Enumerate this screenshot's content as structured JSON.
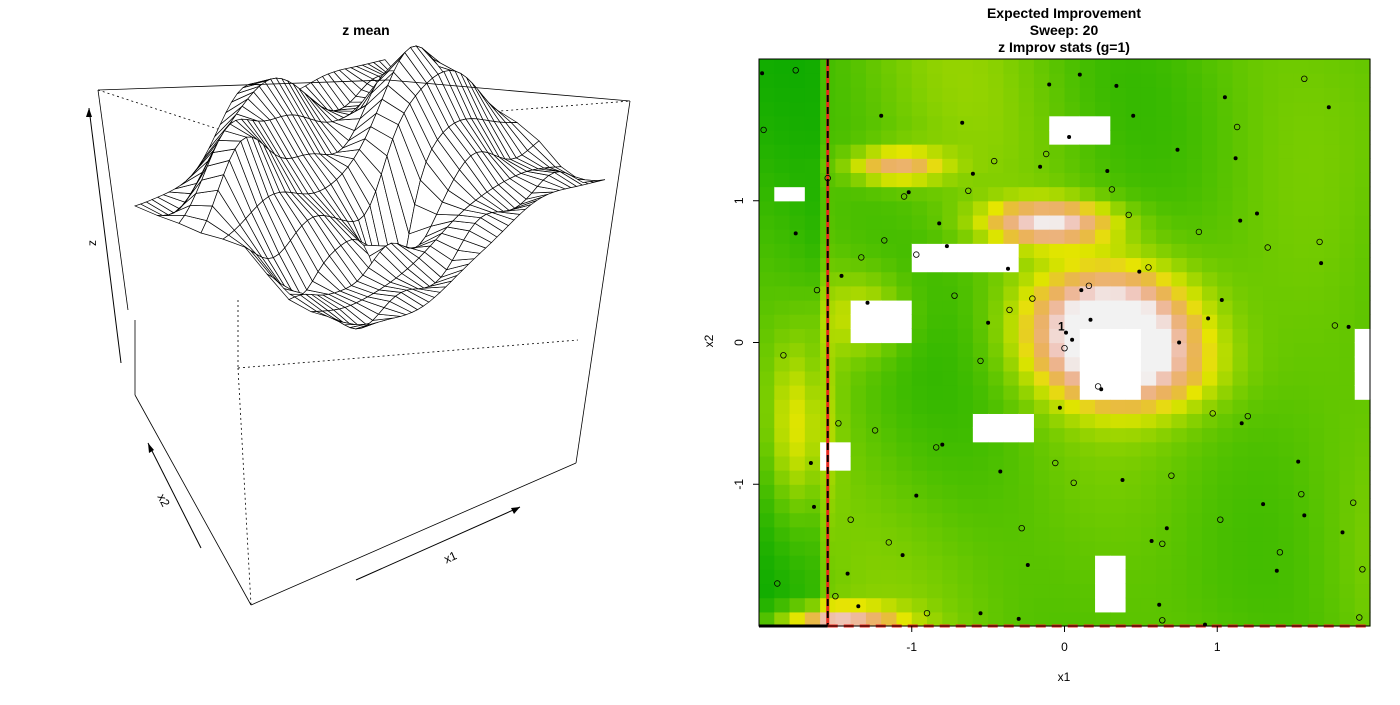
{
  "chart_data": [
    {
      "type": "surface",
      "title": "z mean",
      "xlabel": "x1",
      "ylabel": "x2",
      "zlabel": "z",
      "x_range": [
        -2,
        2
      ],
      "y_range": [
        -2,
        2
      ],
      "grid": false,
      "surface_features": [
        {
          "x": -1.2,
          "y": 1.0,
          "height": 0.9
        },
        {
          "x": -0.3,
          "y": 1.6,
          "height": 0.8
        },
        {
          "x": 1.0,
          "y": 0.3,
          "height": 0.6
        },
        {
          "x": 0.0,
          "y": -0.4,
          "height": -0.9
        },
        {
          "x": -1.5,
          "y": -0.5,
          "height": -0.3
        }
      ]
    },
    {
      "type": "heatmap",
      "title_lines": [
        "Expected Improvement",
        "Sweep: 20",
        "z Improv stats (g=1)"
      ],
      "xlabel": "x1",
      "ylabel": "x2",
      "xlim": [
        -2,
        2
      ],
      "ylim": [
        -2,
        2
      ],
      "xticks": [
        -1,
        0,
        1
      ],
      "yticks": [
        -1,
        0,
        1
      ],
      "grid": false,
      "colormap": [
        "#00A600",
        "#24B300",
        "#4DC000",
        "#7BCD00",
        "#B0DA00",
        "#E6E600",
        "#E8BE3A",
        "#EBB25E",
        "#EDB48E",
        "#F0C9C0",
        "#F2F2F2"
      ],
      "blank_color": "#FFFFFF",
      "split_x": -1.55,
      "split_line_colors": [
        "#E8291C",
        "#000000"
      ],
      "hotspots": [
        {
          "x": 0.3,
          "y": 0.1,
          "sx": 0.5,
          "sy": 0.4,
          "amp": 1.0
        },
        {
          "x": 0.5,
          "y": -0.2,
          "sx": 0.5,
          "sy": 0.3,
          "amp": 0.35
        },
        {
          "x": -1.1,
          "y": 1.25,
          "sx": 0.3,
          "sy": 0.12,
          "amp": 0.5
        },
        {
          "x": -0.1,
          "y": 0.85,
          "sx": 0.4,
          "sy": 0.15,
          "amp": 0.7
        },
        {
          "x": -1.75,
          "y": -0.6,
          "sx": 0.2,
          "sy": 0.6,
          "amp": 0.3
        },
        {
          "x": -1.5,
          "y": -1.95,
          "sx": 0.4,
          "sy": 0.1,
          "amp": 0.6
        },
        {
          "x": -1.3,
          "y": 0.2,
          "sx": 0.3,
          "sy": 0.3,
          "amp": 0.25
        }
      ],
      "dead_zones": [
        {
          "x0": -0.1,
          "x1": 0.3,
          "y0": 1.4,
          "y1": 1.6
        },
        {
          "x0": 0.1,
          "x1": 0.5,
          "y0": -0.4,
          "y1": 0.1
        },
        {
          "x0": -0.95,
          "x1": -0.3,
          "y0": 0.5,
          "y1": 0.7
        },
        {
          "x0": -1.4,
          "x1": -1.0,
          "y0": 0.0,
          "y1": 0.3
        },
        {
          "x0": -0.6,
          "x1": -0.2,
          "y0": -0.7,
          "y1": -0.45
        },
        {
          "x0": -1.6,
          "x1": -1.4,
          "y0": -0.85,
          "y1": -0.65
        },
        {
          "x0": 0.2,
          "x1": 0.4,
          "y0": -1.85,
          "y1": -1.55
        },
        {
          "x0": -1.85,
          "x1": -1.75,
          "y0": 1.0,
          "y1": 1.1
        },
        {
          "x0": 1.9,
          "x1": 2.0,
          "y0": -0.35,
          "y1": 0.1
        }
      ],
      "filled_points": [
        [
          -1.98,
          1.9
        ],
        [
          -1.76,
          0.77
        ],
        [
          -1.66,
          -0.85
        ],
        [
          -1.46,
          0.47
        ],
        [
          -1.29,
          0.28
        ],
        [
          -1.2,
          1.6
        ],
        [
          -1.02,
          1.06
        ],
        [
          -0.97,
          -1.08
        ],
        [
          -0.82,
          0.84
        ],
        [
          -0.77,
          0.68
        ],
        [
          -0.67,
          1.55
        ],
        [
          -0.5,
          0.14
        ],
        [
          -0.42,
          -0.91
        ],
        [
          -0.37,
          0.52
        ],
        [
          -0.24,
          -1.57
        ],
        [
          -0.16,
          1.24
        ],
        [
          -0.1,
          1.82
        ],
        [
          -0.03,
          -0.46
        ],
        [
          0.01,
          0.07
        ],
        [
          0.03,
          1.45
        ],
        [
          0.05,
          0.02
        ],
        [
          0.1,
          1.89
        ],
        [
          0.11,
          0.37
        ],
        [
          0.17,
          0.16
        ],
        [
          0.24,
          -0.33
        ],
        [
          0.28,
          1.21
        ],
        [
          0.34,
          1.81
        ],
        [
          0.38,
          -0.97
        ],
        [
          0.45,
          1.6
        ],
        [
          0.49,
          0.5
        ],
        [
          0.57,
          -1.4
        ],
        [
          0.62,
          -1.85
        ],
        [
          0.74,
          1.36
        ],
        [
          0.75,
          0.0
        ],
        [
          0.94,
          0.17
        ],
        [
          1.03,
          0.3
        ],
        [
          1.05,
          1.73
        ],
        [
          1.12,
          1.3
        ],
        [
          1.16,
          -0.57
        ],
        [
          1.26,
          0.91
        ],
        [
          1.3,
          -1.14
        ],
        [
          1.39,
          -1.61
        ],
        [
          1.53,
          -0.84
        ],
        [
          1.57,
          -1.22
        ],
        [
          1.68,
          0.56
        ],
        [
          1.73,
          1.66
        ],
        [
          1.82,
          -1.34
        ],
        [
          1.86,
          0.11
        ],
        [
          -1.64,
          -1.16
        ],
        [
          -1.35,
          -1.86
        ],
        [
          -1.06,
          -1.5
        ],
        [
          -0.8,
          -0.72
        ],
        [
          -0.55,
          -1.91
        ],
        [
          -0.3,
          -1.95
        ],
        [
          0.67,
          -1.31
        ],
        [
          1.15,
          0.86
        ],
        [
          -0.6,
          1.19
        ],
        [
          -1.42,
          -1.63
        ],
        [
          0.92,
          -1.99
        ]
      ],
      "open_points": [
        [
          -1.97,
          1.5
        ],
        [
          -1.84,
          -0.09
        ],
        [
          -1.76,
          1.92
        ],
        [
          -1.62,
          0.37
        ],
        [
          -1.55,
          1.16
        ],
        [
          -1.48,
          -0.57
        ],
        [
          -1.4,
          -1.25
        ],
        [
          -1.33,
          0.6
        ],
        [
          -1.24,
          -0.62
        ],
        [
          -1.15,
          -1.41
        ],
        [
          -1.05,
          1.03
        ],
        [
          -0.97,
          0.62
        ],
        [
          -0.84,
          -0.74
        ],
        [
          -0.72,
          0.33
        ],
        [
          -0.63,
          1.07
        ],
        [
          -0.55,
          -0.13
        ],
        [
          -0.46,
          1.28
        ],
        [
          -0.36,
          0.23
        ],
        [
          -0.28,
          -1.31
        ],
        [
          -0.21,
          0.31
        ],
        [
          -0.12,
          1.33
        ],
        [
          -0.06,
          -0.85
        ],
        [
          0.0,
          -0.04
        ],
        [
          0.06,
          -0.99
        ],
        [
          0.16,
          0.4
        ],
        [
          0.22,
          -0.31
        ],
        [
          0.31,
          1.08
        ],
        [
          0.42,
          0.9
        ],
        [
          0.55,
          0.53
        ],
        [
          0.64,
          -1.42
        ],
        [
          0.7,
          -0.94
        ],
        [
          0.88,
          0.78
        ],
        [
          0.97,
          -0.5
        ],
        [
          1.02,
          -1.25
        ],
        [
          1.13,
          1.52
        ],
        [
          1.2,
          -0.52
        ],
        [
          1.33,
          0.67
        ],
        [
          1.41,
          -1.48
        ],
        [
          1.55,
          -1.07
        ],
        [
          1.67,
          0.71
        ],
        [
          1.77,
          0.12
        ],
        [
          1.89,
          -1.13
        ],
        [
          1.95,
          -1.6
        ],
        [
          1.93,
          -1.94
        ],
        [
          -1.88,
          -1.7
        ],
        [
          -1.5,
          -1.79
        ],
        [
          0.64,
          -1.96
        ],
        [
          -1.18,
          0.72
        ],
        [
          1.57,
          1.86
        ],
        [
          -0.9,
          -1.91
        ]
      ],
      "marker_label": {
        "x": -0.02,
        "y": 0.07,
        "text": "1"
      }
    }
  ]
}
